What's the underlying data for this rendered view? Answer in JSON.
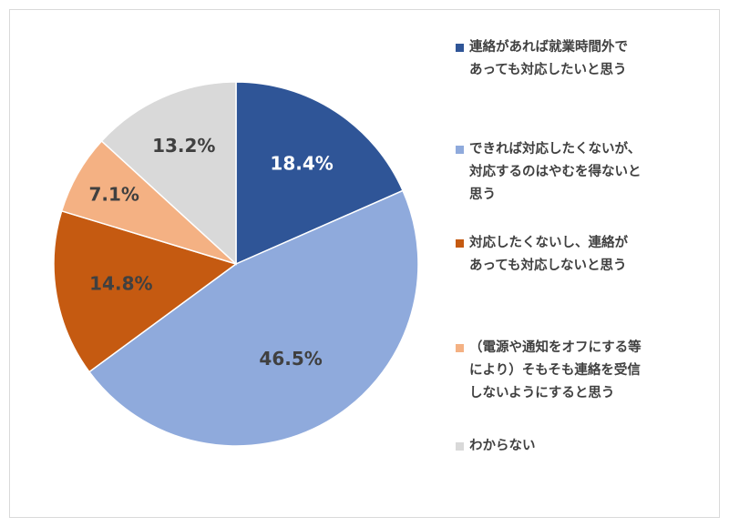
{
  "chart_data": {
    "type": "pie",
    "title": "",
    "slices": [
      {
        "label": "連絡があれば就業時間外で\nあっても対応したいと思う",
        "value": 18.4,
        "value_label": "18.4%",
        "color": "#2f5597"
      },
      {
        "label": "できれば対応したくないが、\n対応するのはやむを得ないと\n思う",
        "value": 46.5,
        "value_label": "46.5%",
        "color": "#8faadc"
      },
      {
        "label": "対応したくないし、連絡が\nあっても対応しないと思う",
        "value": 14.8,
        "value_label": "14.8%",
        "color": "#c55a11"
      },
      {
        "label": "（電源や通知をオフにする等\nにより）そもそも連絡を受信\nしないようにすると思う",
        "value": 7.1,
        "value_label": "7.1%",
        "color": "#f4b183"
      },
      {
        "label": "わからない",
        "value": 13.2,
        "value_label": "13.2%",
        "color": "#d9d9d9"
      }
    ],
    "legend_position": "right",
    "start_angle": "top, clockwise"
  }
}
